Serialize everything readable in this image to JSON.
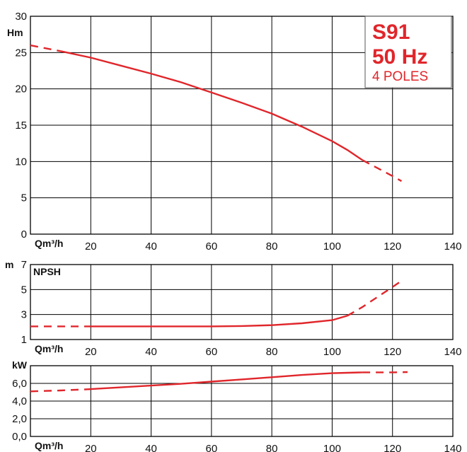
{
  "badge": {
    "model": "S91",
    "frequency": "50 Hz",
    "poles": "4 POLES"
  },
  "colors": {
    "curve": "#e0262b",
    "grid": "#000000",
    "badge_border": "#555555"
  },
  "chart_data": [
    {
      "id": "head",
      "type": "line",
      "ylabel": "Hm",
      "xlabel": "Qm³/h",
      "xlim": [
        0,
        140
      ],
      "ylim": [
        0,
        30
      ],
      "x_ticks": [
        20,
        40,
        60,
        80,
        100,
        120,
        140
      ],
      "y_ticks": [
        0,
        5,
        10,
        15,
        20,
        25,
        30
      ],
      "grid": true,
      "series": [
        {
          "x": [
            0,
            10,
            20,
            30,
            40,
            50,
            60,
            70,
            80,
            90,
            100,
            105,
            110,
            115,
            120,
            123
          ],
          "y": [
            26.0,
            25.2,
            24.3,
            23.2,
            22.1,
            20.9,
            19.5,
            18.1,
            16.6,
            14.8,
            12.8,
            11.6,
            10.2,
            9.1,
            8.0,
            7.3
          ],
          "dashed_before": 10,
          "dashed_after": 110
        }
      ]
    },
    {
      "id": "npsh",
      "type": "line",
      "ylabel": "m",
      "title": "NPSH",
      "xlabel": "Qm³/h",
      "xlim": [
        0,
        140
      ],
      "ylim": [
        1,
        7
      ],
      "x_ticks": [
        20,
        40,
        60,
        80,
        100,
        120,
        140
      ],
      "y_ticks": [
        1,
        3,
        5,
        7
      ],
      "grid": true,
      "series": [
        {
          "x": [
            0,
            10,
            20,
            40,
            60,
            70,
            80,
            90,
            100,
            105,
            110,
            115,
            120,
            123
          ],
          "y": [
            2.05,
            2.05,
            2.05,
            2.05,
            2.05,
            2.08,
            2.15,
            2.3,
            2.55,
            2.9,
            3.6,
            4.4,
            5.2,
            5.7
          ],
          "dashed_before": 20,
          "dashed_after": 105
        }
      ]
    },
    {
      "id": "power",
      "type": "line",
      "ylabel": "kW",
      "xlabel": "Qm³/h",
      "xlim": [
        0,
        140
      ],
      "ylim": [
        0,
        8
      ],
      "x_ticks": [
        20,
        40,
        60,
        80,
        100,
        120,
        140
      ],
      "y_ticks": [
        "0,0",
        "2,0",
        "4,0",
        "6,0"
      ],
      "y_tick_values": [
        0,
        2,
        4,
        6
      ],
      "grid": true,
      "series": [
        {
          "x": [
            0,
            10,
            20,
            30,
            40,
            50,
            60,
            70,
            80,
            90,
            100,
            105,
            110,
            115,
            120,
            125
          ],
          "y": [
            5.1,
            5.2,
            5.35,
            5.55,
            5.75,
            5.95,
            6.2,
            6.45,
            6.7,
            6.95,
            7.15,
            7.2,
            7.25,
            7.25,
            7.25,
            7.28
          ],
          "dashed_before": 20,
          "dashed_after": 110
        }
      ]
    }
  ]
}
